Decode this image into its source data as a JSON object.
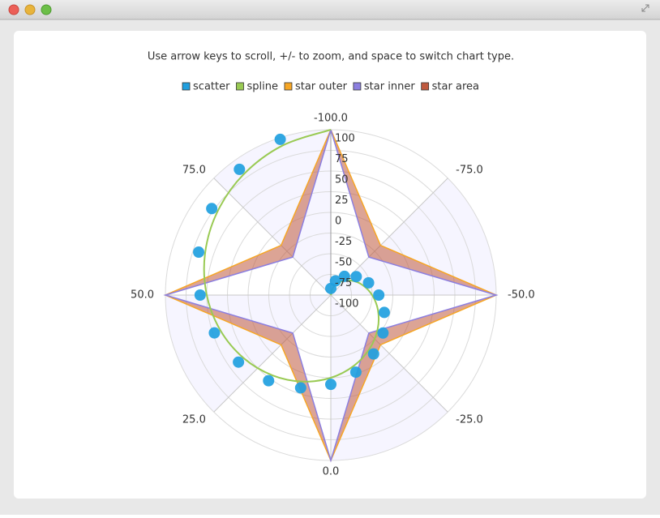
{
  "chart_data": {
    "type": "polar",
    "title": "Use arrow keys to scroll, +/- to zoom, and space to switch chart type.",
    "legend": "top",
    "grid": true,
    "shades": true,
    "shade_color": "#f6f5ff",
    "xlim": [
      -100,
      100
    ],
    "xticks": [
      {
        "value": -100,
        "label": "-100.0"
      },
      {
        "value": -75,
        "label": "-75.0"
      },
      {
        "value": -50,
        "label": "-50.0"
      },
      {
        "value": -25,
        "label": "-25.0"
      },
      {
        "value": 0,
        "label": "0.0"
      },
      {
        "value": 25,
        "label": "25.0"
      },
      {
        "value": 50,
        "label": "50.0"
      },
      {
        "value": 75,
        "label": "75.0"
      }
    ],
    "ylim": [
      -100,
      100
    ],
    "yticks": [
      -100,
      -75,
      -50,
      -25,
      0,
      25,
      50,
      75,
      100
    ],
    "series": [
      {
        "name": "scatter",
        "type": "scatter",
        "color": "#209fdf",
        "x": [
          -100,
          -90,
          -80,
          -70,
          -60,
          -50,
          -40,
          -30,
          -20,
          -10,
          0,
          10,
          20,
          30,
          40,
          50,
          60,
          70,
          80,
          90
        ],
        "values": [
          -92,
          -82,
          -72,
          -62,
          -52,
          -42,
          -32,
          -22,
          -12,
          -2,
          8,
          18,
          28,
          38,
          48,
          58,
          68,
          78,
          88,
          98
        ]
      },
      {
        "name": "spline",
        "type": "spline",
        "color": "#99ca53",
        "x": [
          -100,
          -90,
          -80,
          -70,
          -60,
          -50,
          -40,
          -30,
          -20,
          -10,
          0,
          10,
          20,
          30,
          40,
          50,
          60,
          70,
          80,
          90,
          100
        ],
        "values": [
          -100,
          -90,
          -80,
          -70,
          -60,
          -50,
          -40,
          -30,
          -20,
          -10,
          0,
          10,
          20,
          30,
          40,
          50,
          60,
          70,
          80,
          90,
          100
        ]
      },
      {
        "name": "star outer",
        "type": "line",
        "color": "#f6a625",
        "x": [
          -100,
          -75,
          -50,
          -25,
          0,
          25,
          50,
          75,
          100
        ],
        "values": [
          100,
          -15,
          100,
          -15,
          100,
          -15,
          100,
          -15,
          100
        ]
      },
      {
        "name": "star inner",
        "type": "line",
        "color": "#8c7fe0",
        "x": [
          -100,
          -75,
          -50,
          -25,
          0,
          25,
          50,
          75,
          100
        ],
        "values": [
          100,
          -35,
          100,
          -35,
          100,
          -35,
          100,
          -35,
          100
        ]
      },
      {
        "name": "star area",
        "type": "area",
        "color": "#bf593e"
      }
    ]
  }
}
